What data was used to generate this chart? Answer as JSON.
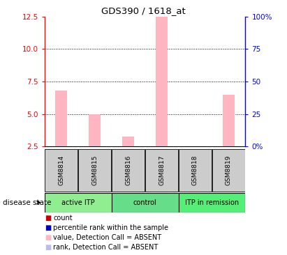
{
  "title": "GDS390 / 1618_at",
  "samples": [
    "GSM8814",
    "GSM8815",
    "GSM8816",
    "GSM8817",
    "GSM8818",
    "GSM8819"
  ],
  "value_bars": [
    6.8,
    5.0,
    3.3,
    12.5,
    2.3,
    6.5
  ],
  "rank_bars": [
    2.6,
    2.6,
    2.5,
    2.6,
    2.4,
    2.6
  ],
  "ylim_left": [
    2.5,
    12.5
  ],
  "ylim_right": [
    0,
    100
  ],
  "yticks_left": [
    2.5,
    5.0,
    7.5,
    10.0,
    12.5
  ],
  "yticks_right": [
    0,
    25,
    50,
    75,
    100
  ],
  "ytick_labels_right": [
    "0%",
    "25",
    "50",
    "75",
    "100%"
  ],
  "hlines": [
    5.0,
    7.5,
    10.0
  ],
  "groups": [
    {
      "label": "active ITP",
      "start": 0,
      "end": 2,
      "color": "#90EE90"
    },
    {
      "label": "control",
      "start": 2,
      "end": 4,
      "color": "#66DD88"
    },
    {
      "label": "ITP in remission",
      "start": 4,
      "end": 6,
      "color": "#55EE77"
    }
  ],
  "bar_width": 0.35,
  "value_bar_color": "#FFB6C1",
  "rank_bar_color": "#BBBBEE",
  "count_color": "#CC0000",
  "percentile_color": "#0000CC",
  "background_plot": "#FFFFFF",
  "sample_box_color": "#CCCCCC",
  "legend_items": [
    {
      "label": "count",
      "color": "#CC0000"
    },
    {
      "label": "percentile rank within the sample",
      "color": "#0000CC"
    },
    {
      "label": "value, Detection Call = ABSENT",
      "color": "#FFB6C1"
    },
    {
      "label": "rank, Detection Call = ABSENT",
      "color": "#BBBBEE"
    }
  ]
}
